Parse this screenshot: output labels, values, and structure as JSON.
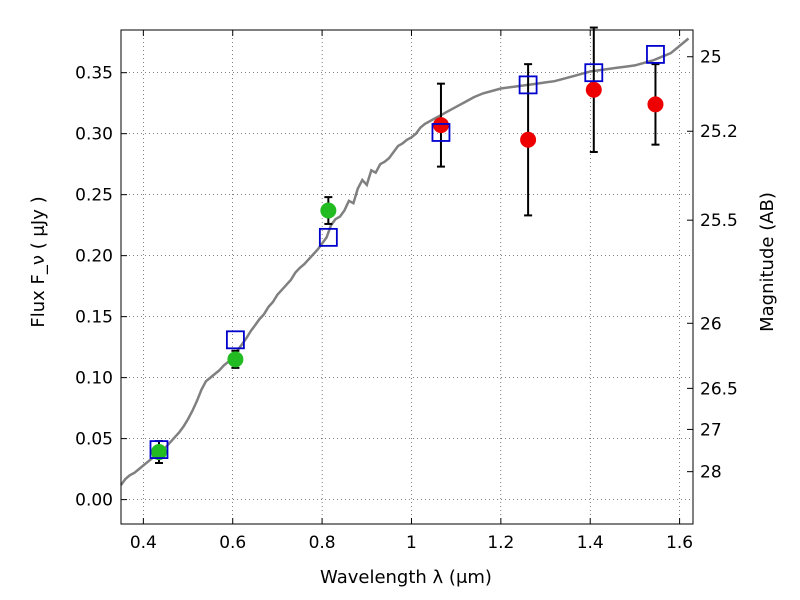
{
  "chart_data": {
    "type": "scatter",
    "title": "",
    "xlabel": "Wavelength λ (μm)",
    "ylabel": "Flux F_ν ( μJy )",
    "y2label": "Magnitude (AB)",
    "xlim": [
      0.35,
      1.63
    ],
    "ylim": [
      -0.02,
      0.385
    ],
    "grid": true,
    "x_ticks": [
      {
        "value": 0.4,
        "label": "0.4"
      },
      {
        "value": 0.6,
        "label": "0.6"
      },
      {
        "value": 0.8,
        "label": "0.8"
      },
      {
        "value": 1.0,
        "label": "1"
      },
      {
        "value": 1.2,
        "label": "1.2"
      },
      {
        "value": 1.4,
        "label": "1.4"
      },
      {
        "value": 1.6,
        "label": "1.6"
      }
    ],
    "y_ticks": [
      {
        "value": 0.0,
        "label": "0.00"
      },
      {
        "value": 0.05,
        "label": "0.05"
      },
      {
        "value": 0.1,
        "label": "0.10"
      },
      {
        "value": 0.15,
        "label": "0.15"
      },
      {
        "value": 0.2,
        "label": "0.20"
      },
      {
        "value": 0.25,
        "label": "0.25"
      },
      {
        "value": 0.3,
        "label": "0.30"
      },
      {
        "value": 0.35,
        "label": "0.35"
      }
    ],
    "y2_ticks": [
      {
        "value": 25,
        "label": "25"
      },
      {
        "value": 25.2,
        "label": "25.2"
      },
      {
        "value": 25.5,
        "label": "25.5"
      },
      {
        "value": 26,
        "label": "26"
      },
      {
        "value": 26.5,
        "label": "26.5"
      },
      {
        "value": 27,
        "label": "27"
      },
      {
        "value": 28,
        "label": "28"
      }
    ],
    "y2_zero_point_mag": 23.9,
    "series": [
      {
        "kind": "line",
        "color": "#808080",
        "x": [
          0.35,
          0.36,
          0.37,
          0.38,
          0.39,
          0.4,
          0.41,
          0.42,
          0.43,
          0.44,
          0.45,
          0.46,
          0.47,
          0.48,
          0.49,
          0.5,
          0.51,
          0.52,
          0.53,
          0.54,
          0.55,
          0.56,
          0.57,
          0.58,
          0.59,
          0.6,
          0.61,
          0.62,
          0.63,
          0.64,
          0.65,
          0.66,
          0.67,
          0.68,
          0.69,
          0.7,
          0.71,
          0.72,
          0.73,
          0.74,
          0.75,
          0.76,
          0.77,
          0.78,
          0.79,
          0.8,
          0.81,
          0.82,
          0.83,
          0.84,
          0.85,
          0.86,
          0.87,
          0.88,
          0.89,
          0.9,
          0.91,
          0.92,
          0.93,
          0.94,
          0.95,
          0.96,
          0.97,
          0.98,
          0.99,
          1.0,
          1.01,
          1.02,
          1.03,
          1.04,
          1.05,
          1.06,
          1.07,
          1.08,
          1.1,
          1.12,
          1.14,
          1.16,
          1.18,
          1.2,
          1.22,
          1.24,
          1.26,
          1.28,
          1.3,
          1.32,
          1.34,
          1.36,
          1.38,
          1.4,
          1.42,
          1.44,
          1.46,
          1.48,
          1.5,
          1.52,
          1.54,
          1.56,
          1.58,
          1.6,
          1.62
        ],
        "y": [
          0.012,
          0.017,
          0.02,
          0.022,
          0.025,
          0.028,
          0.031,
          0.034,
          0.037,
          0.04,
          0.043,
          0.047,
          0.051,
          0.055,
          0.06,
          0.066,
          0.073,
          0.081,
          0.09,
          0.097,
          0.1,
          0.103,
          0.106,
          0.11,
          0.113,
          0.117,
          0.122,
          0.127,
          0.132,
          0.138,
          0.143,
          0.148,
          0.152,
          0.158,
          0.162,
          0.168,
          0.172,
          0.176,
          0.18,
          0.186,
          0.19,
          0.193,
          0.197,
          0.201,
          0.205,
          0.21,
          0.215,
          0.225,
          0.23,
          0.232,
          0.237,
          0.245,
          0.243,
          0.255,
          0.262,
          0.258,
          0.27,
          0.268,
          0.275,
          0.277,
          0.28,
          0.285,
          0.29,
          0.292,
          0.295,
          0.297,
          0.3,
          0.305,
          0.308,
          0.31,
          0.312,
          0.314,
          0.316,
          0.318,
          0.322,
          0.326,
          0.33,
          0.333,
          0.335,
          0.337,
          0.338,
          0.339,
          0.34,
          0.341,
          0.342,
          0.343,
          0.345,
          0.347,
          0.349,
          0.351,
          0.352,
          0.353,
          0.354,
          0.355,
          0.356,
          0.358,
          0.36,
          0.363,
          0.366,
          0.372,
          0.378
        ]
      },
      {
        "kind": "markers",
        "marker": "circle",
        "color": "#22bb22",
        "points": [
          {
            "x": 0.435,
            "y": 0.039,
            "err": 0.009
          },
          {
            "x": 0.606,
            "y": 0.115,
            "err": 0.007
          },
          {
            "x": 0.814,
            "y": 0.237,
            "err": 0.011
          }
        ]
      },
      {
        "kind": "markers",
        "marker": "circle",
        "color": "#ee0000",
        "points": [
          {
            "x": 1.066,
            "y": 0.307,
            "err": 0.034
          },
          {
            "x": 1.261,
            "y": 0.295,
            "err": 0.062
          },
          {
            "x": 1.408,
            "y": 0.336,
            "err": 0.051
          },
          {
            "x": 1.546,
            "y": 0.324,
            "err": 0.033
          }
        ]
      },
      {
        "kind": "markers",
        "marker": "open-square",
        "color": "#0000cc",
        "points": [
          {
            "x": 0.435,
            "y": 0.041
          },
          {
            "x": 0.606,
            "y": 0.131
          },
          {
            "x": 0.814,
            "y": 0.215
          },
          {
            "x": 1.066,
            "y": 0.301
          },
          {
            "x": 1.261,
            "y": 0.34
          },
          {
            "x": 1.408,
            "y": 0.35
          },
          {
            "x": 1.546,
            "y": 0.365
          }
        ]
      }
    ]
  }
}
